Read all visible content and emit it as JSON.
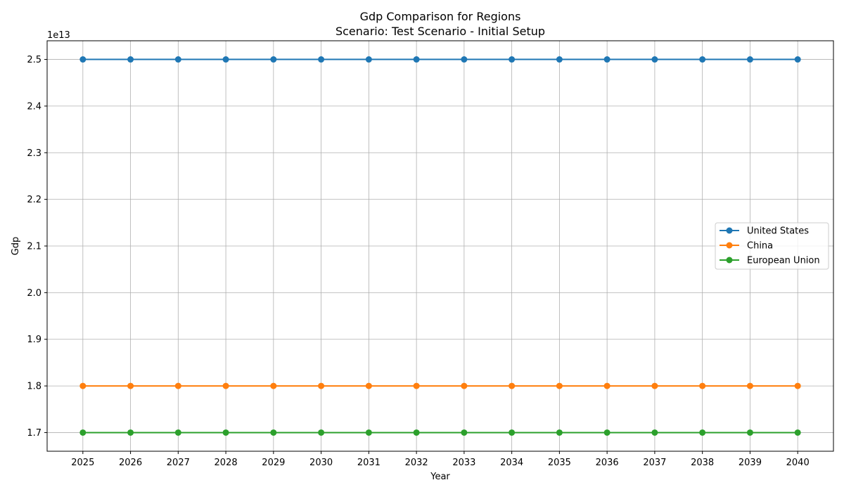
{
  "chart_data": {
    "type": "line",
    "title": "Gdp Comparison for Regions",
    "subtitle": "Scenario: Test Scenario - Initial Setup",
    "xlabel": "Year",
    "ylabel": "Gdp",
    "y_offset_label": "1e13",
    "x": [
      2025,
      2026,
      2027,
      2028,
      2029,
      2030,
      2031,
      2032,
      2033,
      2034,
      2035,
      2036,
      2037,
      2038,
      2039,
      2040
    ],
    "y_ticks": [
      1.7,
      1.8,
      1.9,
      2.0,
      2.1,
      2.2,
      2.3,
      2.4,
      2.5
    ],
    "y_tick_labels": [
      "1.7",
      "1.8",
      "1.9",
      "2.0",
      "2.1",
      "2.2",
      "2.3",
      "2.4",
      "2.5"
    ],
    "ylim": [
      1.66,
      2.54
    ],
    "grid": true,
    "legend_position": "center-right",
    "series": [
      {
        "name": "United States",
        "color": "#1f77b4",
        "values": [
          2.5,
          2.5,
          2.5,
          2.5,
          2.5,
          2.5,
          2.5,
          2.5,
          2.5,
          2.5,
          2.5,
          2.5,
          2.5,
          2.5,
          2.5,
          2.5
        ]
      },
      {
        "name": "China",
        "color": "#ff7f0e",
        "values": [
          1.8,
          1.8,
          1.8,
          1.8,
          1.8,
          1.8,
          1.8,
          1.8,
          1.8,
          1.8,
          1.8,
          1.8,
          1.8,
          1.8,
          1.8,
          1.8
        ]
      },
      {
        "name": "European Union",
        "color": "#2ca02c",
        "values": [
          1.7,
          1.7,
          1.7,
          1.7,
          1.7,
          1.7,
          1.7,
          1.7,
          1.7,
          1.7,
          1.7,
          1.7,
          1.7,
          1.7,
          1.7,
          1.7
        ]
      }
    ]
  }
}
